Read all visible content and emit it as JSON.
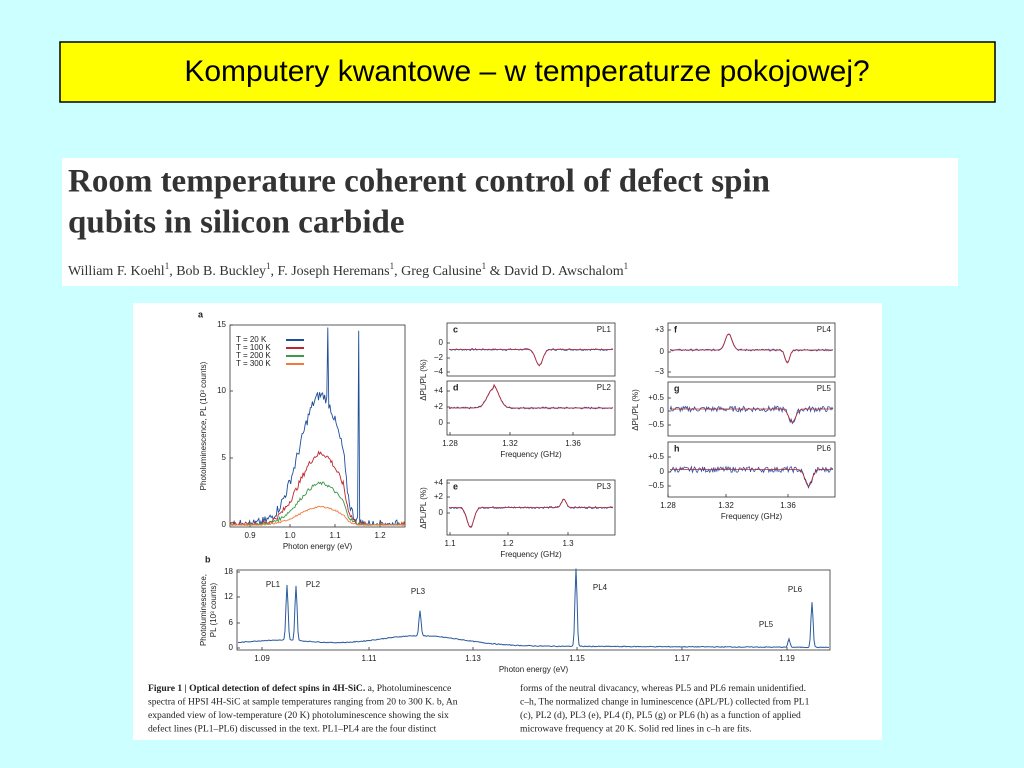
{
  "slide_title": "Komputery kwantowe – w temperaturze pokojowej?",
  "paper": {
    "title_lines": [
      "Room temperature coherent control of defect spin",
      "qubits in silicon carbide"
    ],
    "authors": [
      {
        "name": "William F. Koehl",
        "sup": "1",
        "sep": ", "
      },
      {
        "name": "Bob B. Buckley",
        "sup": "1",
        "sep": ", "
      },
      {
        "name": "F. Joseph Heremans",
        "sup": "1",
        "sep": ", "
      },
      {
        "name": "Greg Calusine",
        "sup": "1",
        "sep": " & "
      },
      {
        "name": "David D. Awschalom",
        "sup": "1"
      }
    ]
  },
  "figure": {
    "a": {
      "label": "a",
      "yticks": [
        "0",
        "5",
        "10",
        "15"
      ],
      "xticks": [
        "0.9",
        "1.0",
        "1.1",
        "1.2"
      ],
      "xlabel": "Photon energy (eV)",
      "ylabel": "Photoluminescence, PL (10³ counts)",
      "legend": [
        {
          "name": "T = 20 K",
          "color": "#1f4e9a"
        },
        {
          "name": "T = 100 K",
          "color": "#c0262d"
        },
        {
          "name": "T = 200 K",
          "color": "#3a9a48"
        },
        {
          "name": "T = 300 K",
          "color": "#ef7a3a"
        }
      ]
    },
    "c": {
      "label": "c",
      "tag": "PL1",
      "yticks": [
        "0",
        "−2",
        "−4"
      ]
    },
    "d": {
      "label": "d",
      "tag": "PL2",
      "yticks": [
        "+4",
        "+2",
        "0"
      ],
      "xticks": [
        "1.28",
        "1.32",
        "1.36"
      ],
      "xlabel": "Frequency (GHz)"
    },
    "cd_ylabel": "ΔPL/PL (%)",
    "e": {
      "label": "e",
      "tag": "PL3",
      "yticks": [
        "+4",
        "+2",
        "0"
      ],
      "xticks": [
        "1.1",
        "1.2",
        "1.3"
      ],
      "xlabel": "Frequency (GHz)",
      "ylabel": "ΔPL/PL (%)"
    },
    "f": {
      "label": "f",
      "tag": "PL4",
      "yticks": [
        "+3",
        "0",
        "−3"
      ]
    },
    "g": {
      "label": "g",
      "tag": "PL5",
      "yticks": [
        "+0.5",
        "0",
        "−0.5"
      ]
    },
    "h": {
      "label": "h",
      "tag": "PL6",
      "yticks": [
        "+0.5",
        "0",
        "−0.5"
      ],
      "xticks": [
        "1.28",
        "1.32",
        "1.36"
      ],
      "xlabel": "Frequency (GHz)"
    },
    "fgh_ylabel": "ΔPL/PL (%)",
    "b": {
      "label": "b",
      "yticks": [
        "18",
        "12",
        "6",
        "0"
      ],
      "xticks": [
        "1.09",
        "1.11",
        "1.13",
        "1.15",
        "1.17",
        "1.19"
      ],
      "xlabel": "Photon energy (eV)",
      "ylabel_lines": [
        "Photoluminescence,",
        "PL (10³ counts)"
      ],
      "peaks": [
        "PL1",
        "PL2",
        "PL3",
        "PL4",
        "PL5",
        "PL6"
      ]
    }
  },
  "caption": {
    "heading": "Figure 1 | Optical detection of defect spins in 4H-SiC.",
    "left_lines": [
      " a, Photoluminescence",
      "spectra of HPSI 4H-SiC at sample temperatures ranging from 20 to 300 K. b, An",
      "expanded view of low-temperature (20 K) photoluminescence showing the six",
      "defect lines (PL1–PL6) discussed in the text. PL1–PL4 are the four distinct"
    ],
    "right_lines": [
      "forms of the neutral divacancy, whereas PL5 and PL6 remain unidentified.",
      "c–h, The normalized change in luminescence (ΔPL/PL) collected from PL1",
      "(c), PL2 (d), PL3 (e), PL4 (f), PL5 (g) or PL6 (h) as a function of applied",
      "microwave frequency at 20 K. Solid red lines in c–h are fits."
    ]
  }
}
